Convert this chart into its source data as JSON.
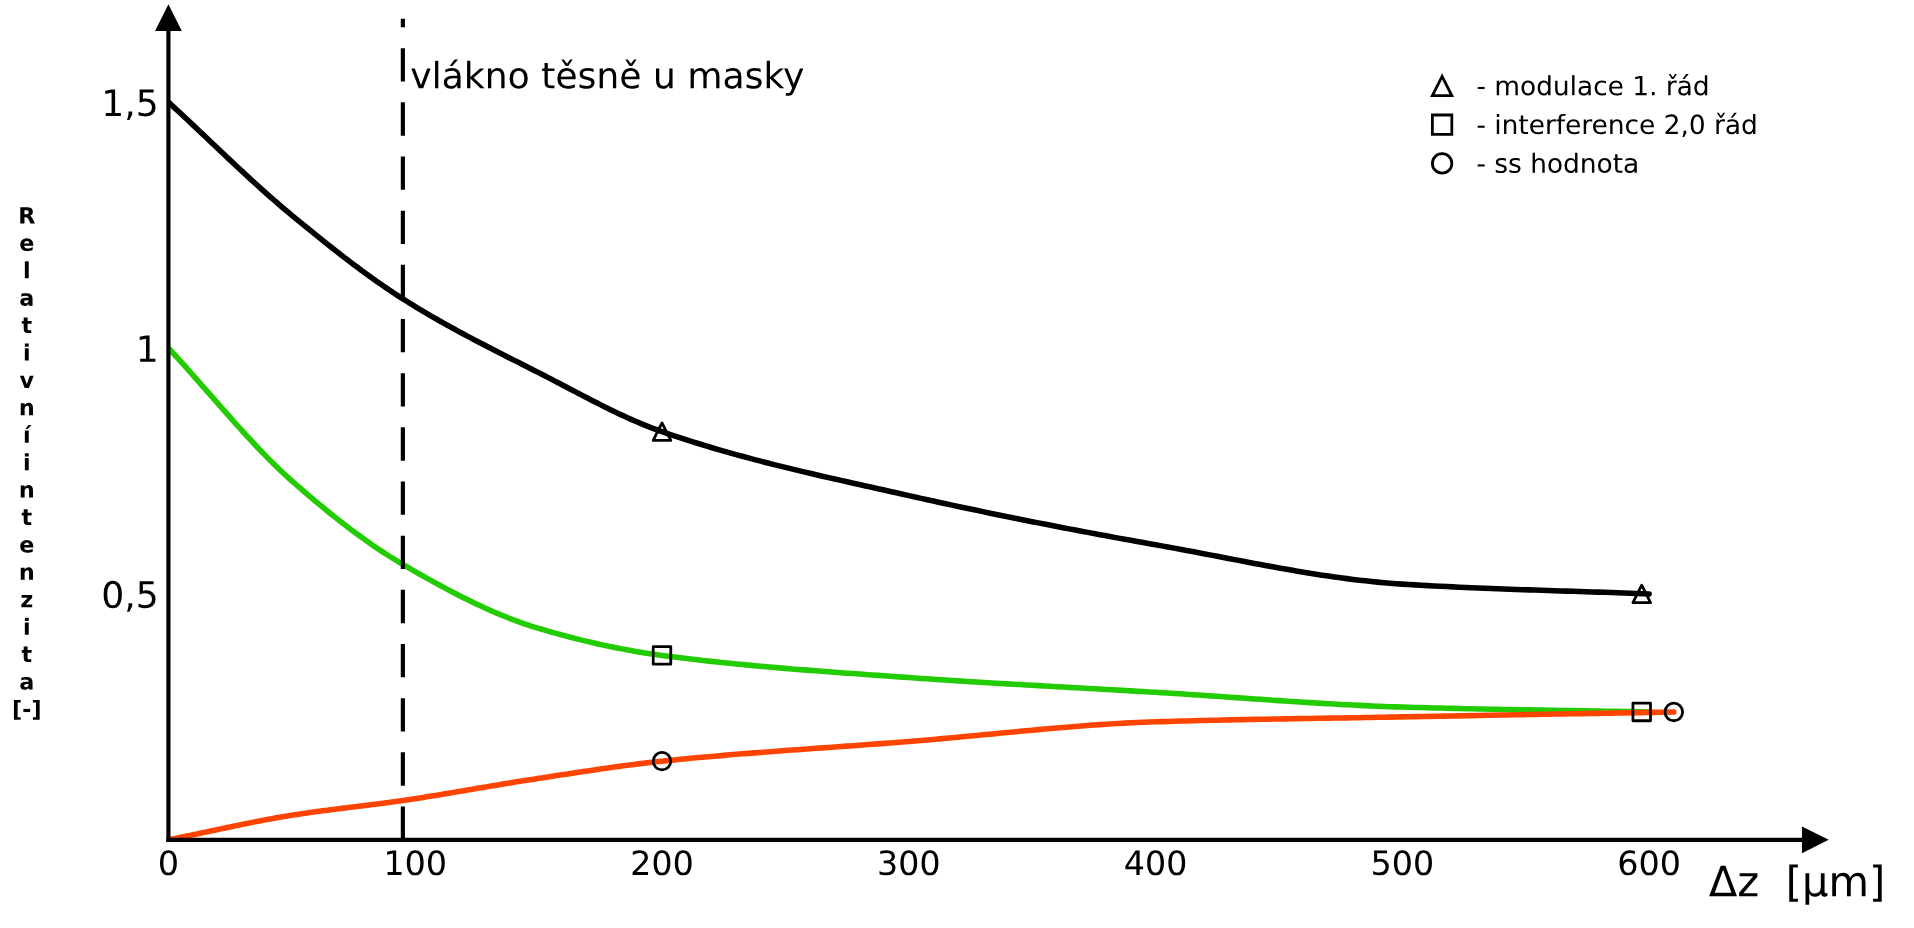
{
  "chart_data": {
    "type": "line",
    "xlabel": "Δz  [µm]",
    "ylabel": "Relativní intenzita [-]",
    "xlim": [
      0,
      667
    ],
    "ylim": [
      0,
      1.67
    ],
    "xticks": [
      0,
      100,
      200,
      300,
      400,
      500,
      600
    ],
    "yticks": [
      {
        "value": 0.5,
        "label": "0,5"
      },
      {
        "value": 1,
        "label": "1"
      },
      {
        "value": 1.5,
        "label": "1,5"
      }
    ],
    "grid": false,
    "legend": "top right",
    "line_style": "solid",
    "ref_lines": [
      {
        "axis": "x",
        "value": 95,
        "label": "vlákno těsně u masky",
        "color": "#000000",
        "line_style": "dashed"
      }
    ],
    "series": [
      {
        "color": "#000000",
        "x": [
          0,
          50,
          95,
          150,
          200,
          300,
          400,
          500,
          600
        ],
        "values": [
          1.5,
          1.27,
          1.1,
          0.95,
          0.83,
          0.7,
          0.6,
          0.52,
          0.5
        ]
      },
      {
        "color": "#22cc00",
        "x": [
          0,
          50,
          95,
          150,
          200,
          300,
          400,
          500,
          600
        ],
        "values": [
          1.0,
          0.73,
          0.56,
          0.43,
          0.375,
          0.33,
          0.3,
          0.27,
          0.26
        ]
      },
      {
        "color": "#ff4400",
        "x": [
          0,
          50,
          95,
          150,
          200,
          300,
          400,
          500,
          610
        ],
        "values": [
          0.0,
          0.05,
          0.08,
          0.125,
          0.16,
          0.2,
          0.24,
          0.25,
          0.26
        ]
      },
      {
        "type": "scatter",
        "name": "- modulace 1. řád",
        "marker": "triangle",
        "color": "#000000",
        "x": [
          200,
          597
        ],
        "values": [
          0.83,
          0.5
        ]
      },
      {
        "type": "scatter",
        "name": "- interference 2,0 řád",
        "marker": "square",
        "color": "#000000",
        "x": [
          200,
          597
        ],
        "values": [
          0.375,
          0.26
        ]
      },
      {
        "type": "scatter",
        "name": "- ss hodnota",
        "marker": "circle",
        "color": "#000000",
        "x": [
          200,
          610
        ],
        "values": [
          0.16,
          0.26
        ]
      }
    ]
  }
}
